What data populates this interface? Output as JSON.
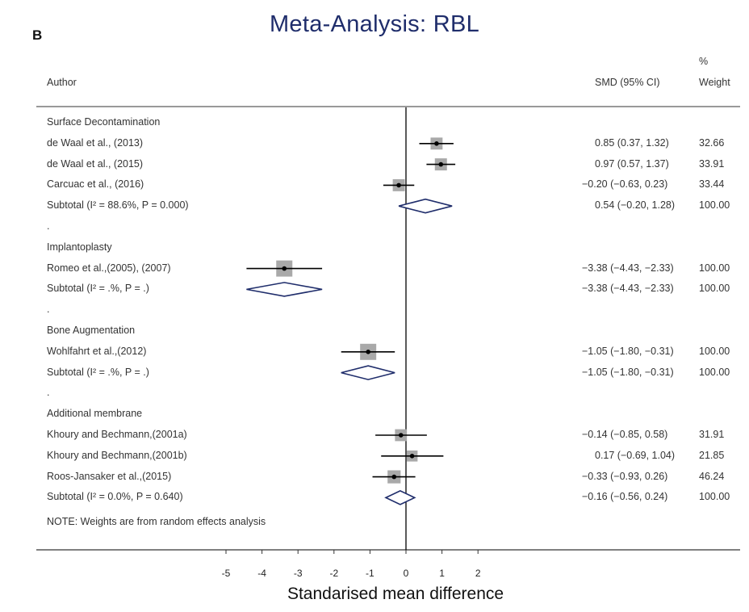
{
  "panel_letter": "B",
  "chart_data": {
    "type": "forest",
    "title": "Meta-Analysis: RBL",
    "xlabel": "Standarised mean difference",
    "xlim": [
      -5,
      2
    ],
    "xticks": [
      "-5",
      "-4",
      "-3",
      "-2",
      "-1",
      "0",
      "1",
      "2"
    ],
    "headers": {
      "author": "Author",
      "smd": "SMD (95% CI)",
      "weight_pct": "%",
      "weight": "Weight"
    },
    "rows": [
      {
        "kind": "group",
        "label": "Surface Decontamination"
      },
      {
        "kind": "study",
        "label": "de Waal  et al., (2013)",
        "smd": 0.85,
        "lo": 0.37,
        "hi": 1.32,
        "ci_text": "0.85 (0.37, 1.32)",
        "weight": 32.66,
        "weight_text": "32.66"
      },
      {
        "kind": "study",
        "label": "de Waal  et al., (2015)",
        "smd": 0.97,
        "lo": 0.57,
        "hi": 1.37,
        "ci_text": "0.97 (0.57, 1.37)",
        "weight": 33.91,
        "weight_text": "33.91"
      },
      {
        "kind": "study",
        "label": "Carcuac et al., (2016)",
        "smd": -0.2,
        "lo": -0.63,
        "hi": 0.23,
        "ci_text": "−0.20 (−0.63, 0.23)",
        "weight": 33.44,
        "weight_text": "33.44"
      },
      {
        "kind": "subtotal",
        "label": "Subtotal  (I² = 88.6%, P = 0.000)",
        "smd": 0.54,
        "lo": -0.2,
        "hi": 1.28,
        "ci_text": "0.54 (−0.20, 1.28)",
        "weight_text": "100.00"
      },
      {
        "kind": "dot",
        "label": "."
      },
      {
        "kind": "group",
        "label": "Implantoplasty"
      },
      {
        "kind": "study",
        "label": "Romeo et al.,(2005), (2007)",
        "smd": -3.38,
        "lo": -4.43,
        "hi": -2.33,
        "ci_text": "−3.38 (−4.43, −2.33)",
        "weight": 100.0,
        "weight_text": "100.00"
      },
      {
        "kind": "subtotal",
        "label": "Subtotal  (I² = .%, P = .)",
        "smd": -3.38,
        "lo": -4.43,
        "hi": -2.33,
        "ci_text": "−3.38 (−4.43, −2.33)",
        "weight_text": "100.00"
      },
      {
        "kind": "dot",
        "label": "."
      },
      {
        "kind": "group",
        "label": "Bone Augmentation"
      },
      {
        "kind": "study",
        "label": "Wohlfahrt et al.,(2012)",
        "smd": -1.05,
        "lo": -1.8,
        "hi": -0.31,
        "ci_text": "−1.05 (−1.80, −0.31)",
        "weight": 100.0,
        "weight_text": "100.00"
      },
      {
        "kind": "subtotal",
        "label": "Subtotal  (I² = .%, P = .)",
        "smd": -1.05,
        "lo": -1.8,
        "hi": -0.31,
        "ci_text": "−1.05 (−1.80, −0.31)",
        "weight_text": "100.00"
      },
      {
        "kind": "dot",
        "label": "."
      },
      {
        "kind": "group",
        "label": "Additional membrane"
      },
      {
        "kind": "study",
        "label": "Khoury and Bechmann,(2001a)",
        "smd": -0.14,
        "lo": -0.85,
        "hi": 0.58,
        "ci_text": "−0.14 (−0.85, 0.58)",
        "weight": 31.91,
        "weight_text": "31.91"
      },
      {
        "kind": "study",
        "label": "Khoury and Bechmann,(2001b)",
        "smd": 0.17,
        "lo": -0.69,
        "hi": 1.04,
        "ci_text": "0.17 (−0.69, 1.04)",
        "weight": 21.85,
        "weight_text": "21.85"
      },
      {
        "kind": "study",
        "label": "Roos-Jansaker et al.,(2015)",
        "smd": -0.33,
        "lo": -0.93,
        "hi": 0.26,
        "ci_text": "−0.33 (−0.93, 0.26)",
        "weight": 46.24,
        "weight_text": "46.24"
      },
      {
        "kind": "subtotal",
        "label": "Subtotal  (I² = 0.0%, P = 0.640)",
        "smd": -0.16,
        "lo": -0.56,
        "hi": 0.24,
        "ci_text": "−0.16 (−0.56, 0.24)",
        "weight_text": "100.00"
      }
    ],
    "note": "NOTE: Weights are from random effects analysis",
    "colors": {
      "title": "#1f2d6b",
      "diamond": "#1f2d6b",
      "weight_box": "#a9a9a9",
      "point": "#000000",
      "line": "#000000"
    }
  }
}
